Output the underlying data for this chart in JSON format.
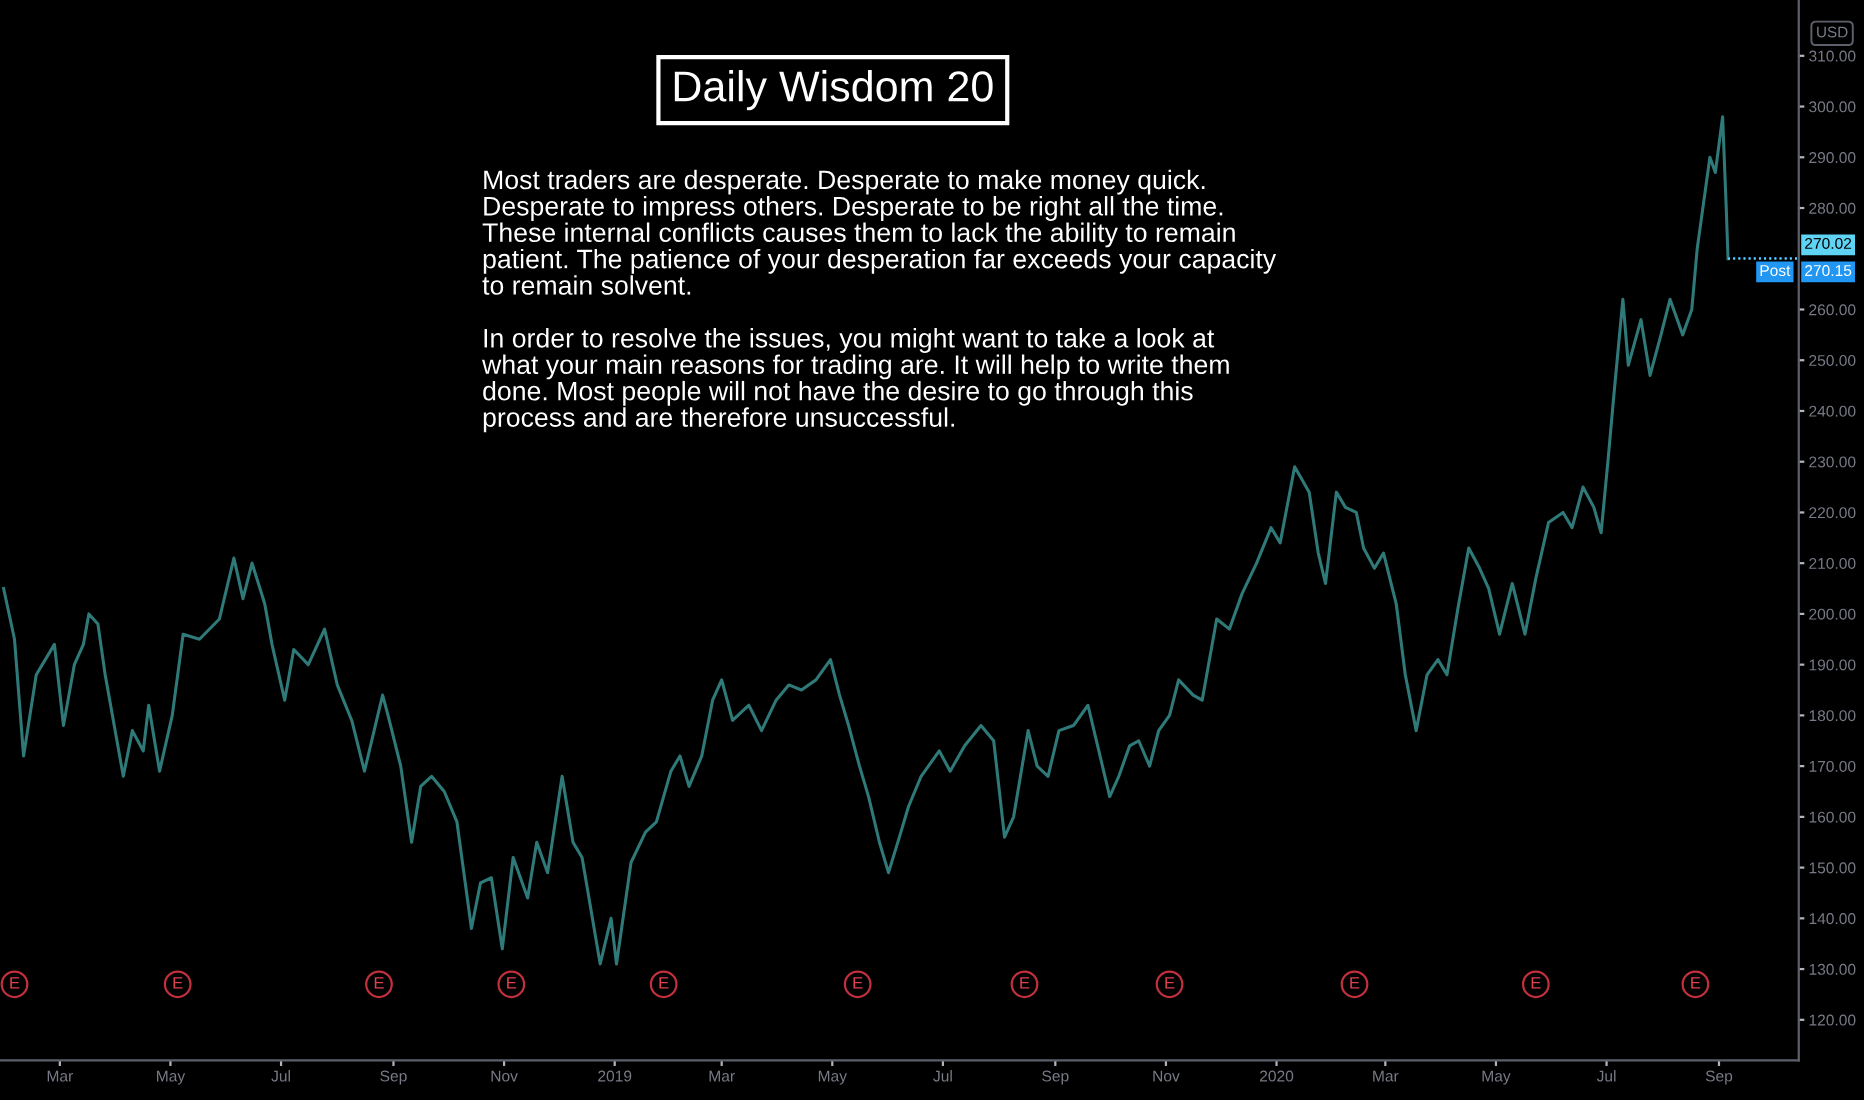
{
  "chart_data": {
    "type": "line",
    "title": "Daily Wisdom 20",
    "x": [
      "2018-01-29",
      "2018-02-04",
      "2018-02-09",
      "2018-02-16",
      "2018-02-26",
      "2018-03-03",
      "2018-03-09",
      "2018-03-14",
      "2018-03-17",
      "2018-03-22",
      "2018-03-26",
      "2018-04-05",
      "2018-04-10",
      "2018-04-16",
      "2018-04-19",
      "2018-04-25",
      "2018-05-02",
      "2018-05-08",
      "2018-05-17",
      "2018-05-28",
      "2018-06-05",
      "2018-06-10",
      "2018-06-15",
      "2018-06-22",
      "2018-06-26",
      "2018-07-03",
      "2018-07-08",
      "2018-07-16",
      "2018-07-25",
      "2018-08-01",
      "2018-08-09",
      "2018-08-16",
      "2018-08-26",
      "2018-08-29",
      "2018-09-05",
      "2018-09-11",
      "2018-09-16",
      "2018-09-22",
      "2018-09-29",
      "2018-10-06",
      "2018-10-14",
      "2018-10-19",
      "2018-10-25",
      "2018-10-31",
      "2018-11-06",
      "2018-11-14",
      "2018-11-19",
      "2018-11-25",
      "2018-12-03",
      "2018-12-09",
      "2018-12-14",
      "2018-12-24",
      "2018-12-30",
      "2019-01-02",
      "2019-01-10",
      "2019-01-18",
      "2019-01-24",
      "2019-02-01",
      "2019-02-06",
      "2019-02-11",
      "2019-02-18",
      "2019-02-24",
      "2019-03-01",
      "2019-03-07",
      "2019-03-16",
      "2019-03-23",
      "2019-03-31",
      "2019-04-07",
      "2019-04-14",
      "2019-04-22",
      "2019-04-30",
      "2019-05-05",
      "2019-05-10",
      "2019-05-16",
      "2019-05-21",
      "2019-05-27",
      "2019-06-01",
      "2019-06-07",
      "2019-06-12",
      "2019-06-19",
      "2019-06-29",
      "2019-07-05",
      "2019-07-13",
      "2019-07-22",
      "2019-07-29",
      "2019-08-04",
      "2019-08-09",
      "2019-08-17",
      "2019-08-22",
      "2019-08-28",
      "2019-09-03",
      "2019-09-11",
      "2019-09-19",
      "2019-09-25",
      "2019-10-01",
      "2019-10-06",
      "2019-10-12",
      "2019-10-17",
      "2019-10-23",
      "2019-10-28",
      "2019-11-03",
      "2019-11-08",
      "2019-11-16",
      "2019-11-21",
      "2019-11-29",
      "2019-12-06",
      "2019-12-13",
      "2019-12-21",
      "2019-12-29",
      "2020-01-03",
      "2020-01-11",
      "2020-01-19",
      "2020-01-24",
      "2020-01-28",
      "2020-02-03",
      "2020-02-08",
      "2020-02-14",
      "2020-02-18",
      "2020-02-24",
      "2020-02-29",
      "2020-03-07",
      "2020-03-12",
      "2020-03-18",
      "2020-03-24",
      "2020-03-30",
      "2020-04-04",
      "2020-04-10",
      "2020-04-16",
      "2020-04-22",
      "2020-04-27",
      "2020-05-03",
      "2020-05-10",
      "2020-05-17",
      "2020-05-23",
      "2020-05-30",
      "2020-06-07",
      "2020-06-12",
      "2020-06-18",
      "2020-06-24",
      "2020-06-28",
      "2020-07-02",
      "2020-07-05",
      "2020-07-10",
      "2020-07-13",
      "2020-07-20",
      "2020-07-25",
      "2020-07-31",
      "2020-08-05",
      "2020-08-12",
      "2020-08-17",
      "2020-08-20",
      "2020-08-27",
      "2020-08-30",
      "2020-09-03",
      "2020-09-05",
      "2020-09-06"
    ],
    "series": [
      {
        "color": "#2f7a78",
        "values": [
          205,
          195,
          172,
          188,
          194,
          178,
          190,
          194,
          200,
          198,
          188,
          168,
          177,
          173,
          182,
          169,
          180,
          196,
          195,
          199,
          211,
          203,
          210,
          202,
          194,
          183,
          193,
          190,
          197,
          186,
          179,
          169,
          184,
          180,
          170,
          155,
          166,
          168,
          165,
          159,
          138,
          147,
          148,
          134,
          152,
          144,
          155,
          149,
          168,
          155,
          152,
          131,
          140,
          131,
          151,
          157,
          159,
          169,
          172,
          166,
          172,
          183,
          187,
          179,
          182,
          177,
          183,
          186,
          185,
          187,
          191,
          184,
          178,
          170,
          164,
          155,
          149,
          156,
          162,
          168,
          173,
          169,
          174,
          178,
          175,
          156,
          160,
          177,
          170,
          168,
          177,
          178,
          182,
          173,
          164,
          168,
          174,
          175,
          170,
          177,
          180,
          187,
          184,
          183,
          199,
          197,
          204,
          210,
          217,
          214,
          229,
          224,
          212,
          206,
          224,
          221,
          220,
          213,
          209,
          212,
          202,
          188,
          177,
          188,
          191,
          188,
          201,
          213,
          209,
          205,
          196,
          206,
          196,
          207,
          218,
          220,
          217,
          225,
          221,
          216,
          231,
          243,
          262,
          249,
          258,
          247,
          255,
          262,
          255,
          260,
          272,
          290,
          287,
          298,
          280,
          270
        ]
      }
    ],
    "xlim": [
      "2018-01-27",
      "2020-10-15"
    ],
    "xticks": [
      {
        "value": "2018-03-01",
        "label": "Mar"
      },
      {
        "value": "2018-05-01",
        "label": "May"
      },
      {
        "value": "2018-07-01",
        "label": "Jul"
      },
      {
        "value": "2018-09-01",
        "label": "Sep"
      },
      {
        "value": "2018-11-01",
        "label": "Nov"
      },
      {
        "value": "2019-01-01",
        "label": "2019"
      },
      {
        "value": "2019-03-01",
        "label": "Mar"
      },
      {
        "value": "2019-05-01",
        "label": "May"
      },
      {
        "value": "2019-07-01",
        "label": "Jul"
      },
      {
        "value": "2019-09-01",
        "label": "Sep"
      },
      {
        "value": "2019-11-01",
        "label": "Nov"
      },
      {
        "value": "2020-01-01",
        "label": "2020"
      },
      {
        "value": "2020-03-01",
        "label": "Mar"
      },
      {
        "value": "2020-05-01",
        "label": "May"
      },
      {
        "value": "2020-07-01",
        "label": "Jul"
      },
      {
        "value": "2020-09-01",
        "label": "Sep"
      }
    ],
    "ylim": [
      112,
      321
    ],
    "yticks": [
      {
        "value": 120,
        "label": "120.00"
      },
      {
        "value": 130,
        "label": "130.00"
      },
      {
        "value": 140,
        "label": "140.00"
      },
      {
        "value": 150,
        "label": "150.00"
      },
      {
        "value": 160,
        "label": "160.00"
      },
      {
        "value": 170,
        "label": "170.00"
      },
      {
        "value": 180,
        "label": "180.00"
      },
      {
        "value": 190,
        "label": "190.00"
      },
      {
        "value": 200,
        "label": "200.00"
      },
      {
        "value": 210,
        "label": "210.00"
      },
      {
        "value": 220,
        "label": "220.00"
      },
      {
        "value": 230,
        "label": "230.00"
      },
      {
        "value": 240,
        "label": "240.00"
      },
      {
        "value": 250,
        "label": "250.00"
      },
      {
        "value": 260,
        "label": "260.00"
      },
      {
        "value": 280,
        "label": "280.00"
      },
      {
        "value": 290,
        "label": "290.00"
      },
      {
        "value": 300,
        "label": "300.00"
      },
      {
        "value": 310,
        "label": "310.00"
      }
    ],
    "annotations": [
      "Most traders are desperate. Desperate to make money quick.\nDesperate to impress others. Desperate to be right all the time.\nThese internal conflicts causes them to lack the ability to remain\npatient. The patience of your desperation far exceeds your capacity\nto remain solvent.\n\nIn order to resolve the issues, you might want to take a look at\nwhat your main reasons for trading are. It will help to write them\ndone. Most people will not have the desire to go through this\nprocess and are therefore unsuccessful.",
      "USD",
      "Post",
      {
        "text": "270.15",
        "x": "2020-09-06",
        "y": 270.15
      },
      {
        "text": "270.02",
        "x": "2020-09-06",
        "y": 270.02
      },
      {
        "text": "E",
        "x": "2018-02-04",
        "y": 127
      },
      {
        "text": "E",
        "x": "2018-05-05",
        "y": 127
      },
      {
        "text": "E",
        "x": "2018-08-24",
        "y": 127
      },
      {
        "text": "E",
        "x": "2018-11-05",
        "y": 127
      },
      {
        "text": "E",
        "x": "2019-01-28",
        "y": 127
      },
      {
        "text": "E",
        "x": "2019-05-15",
        "y": 127
      },
      {
        "text": "E",
        "x": "2019-08-15",
        "y": 127
      },
      {
        "text": "E",
        "x": "2019-11-03",
        "y": 127
      },
      {
        "text": "E",
        "x": "2020-02-13",
        "y": 127
      },
      {
        "text": "E",
        "x": "2020-05-23",
        "y": 127
      },
      {
        "text": "E",
        "x": "2020-08-19",
        "y": 127
      }
    ],
    "grid": false,
    "marker": "none",
    "line_style": "solid"
  }
}
